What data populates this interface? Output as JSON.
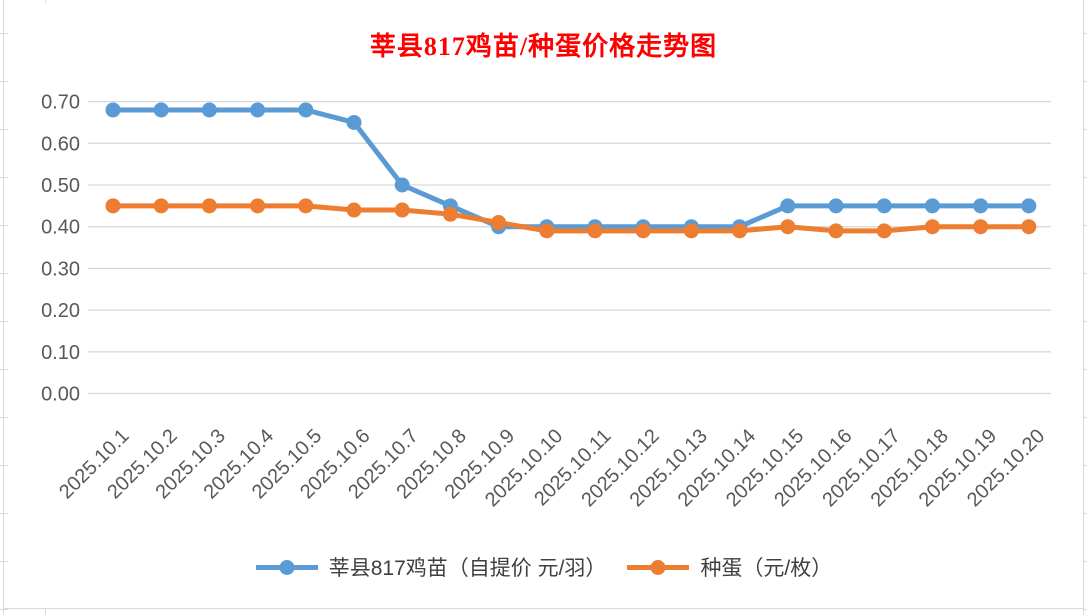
{
  "title": {
    "text": "莘县817鸡苗/种蛋价格走势图",
    "color": "#FF0000"
  },
  "chart_data": {
    "type": "line",
    "categories": [
      "2025.10.1",
      "2025.10.2",
      "2025.10.3",
      "2025.10.4",
      "2025.10.5",
      "2025.10.6",
      "2025.10.7",
      "2025.10.8",
      "2025.10.9",
      "2025.10.10",
      "2025.10.11",
      "2025.10.12",
      "2025.10.13",
      "2025.10.14",
      "2025.10.15",
      "2025.10.16",
      "2025.10.17",
      "2025.10.18",
      "2025.10.19",
      "2025.10.20"
    ],
    "series": [
      {
        "name": "莘县817鸡苗（自提价 元/羽）",
        "color": "#5B9BD5",
        "marker": "circle",
        "values": [
          0.68,
          0.68,
          0.68,
          0.68,
          0.68,
          0.65,
          0.5,
          0.45,
          0.4,
          0.4,
          0.4,
          0.4,
          0.4,
          0.4,
          0.45,
          0.45,
          0.45,
          0.45,
          0.45,
          0.45
        ]
      },
      {
        "name": "种蛋（元/枚）",
        "color": "#ED7D31",
        "marker": "circle",
        "values": [
          0.45,
          0.45,
          0.45,
          0.45,
          0.45,
          0.44,
          0.44,
          0.43,
          0.41,
          0.39,
          0.39,
          0.39,
          0.39,
          0.39,
          0.4,
          0.39,
          0.39,
          0.4,
          0.4,
          0.4
        ]
      }
    ],
    "ylim": [
      0.0,
      0.7
    ],
    "ytick_step": 0.1,
    "ytick_labels": [
      "0.00",
      "0.10",
      "0.20",
      "0.30",
      "0.40",
      "0.50",
      "0.60",
      "0.70"
    ],
    "xlabel": "",
    "ylabel": "",
    "grid": "horizontal",
    "legend_position": "bottom",
    "x_label_rotation_deg": 45
  },
  "colors": {
    "background": "#FFFFFF",
    "gridline": "#D9D9D9",
    "axis_text": "#595959",
    "legend_text": "#404040",
    "spreadsheet_line": "#D9D9D9"
  }
}
